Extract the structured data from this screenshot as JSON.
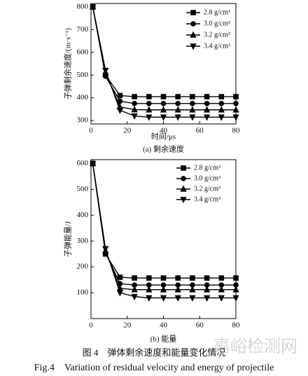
{
  "chart_data": [
    {
      "type": "line",
      "title": "(a) 剩余速度",
      "x_label": "时间/μs",
      "y_label": "子弹剩余速度/(m·s⁻¹)",
      "x": [
        1,
        8,
        16,
        24,
        32,
        40,
        48,
        56,
        64,
        72,
        80
      ],
      "series": [
        {
          "name": "2.8 g/cm³",
          "color": "#000000",
          "marker": "square",
          "values": [
            800,
            500,
            410,
            405,
            405,
            405,
            405,
            405,
            405,
            405,
            405
          ]
        },
        {
          "name": "3.0 g/cm³",
          "color": "#000000",
          "marker": "circle",
          "values": [
            800,
            495,
            385,
            375,
            375,
            375,
            375,
            375,
            375,
            375,
            375
          ]
        },
        {
          "name": "3.2 g/cm³",
          "color": "#000000",
          "marker": "triangle-up",
          "values": [
            800,
            510,
            360,
            348,
            347,
            347,
            347,
            347,
            347,
            347,
            347
          ]
        },
        {
          "name": "3.4 g/cm³",
          "color": "#000000",
          "marker": "triangle-down",
          "values": [
            800,
            520,
            345,
            320,
            315,
            315,
            315,
            315,
            315,
            315,
            315
          ]
        }
      ],
      "xlim": [
        0,
        80
      ],
      "xticks": [
        0,
        20,
        40,
        60,
        80
      ],
      "ylim": [
        285,
        815
      ],
      "yticks": [
        300,
        400,
        500,
        600,
        700,
        800
      ],
      "legend": "upper right"
    },
    {
      "type": "line",
      "title": "(b) 能量",
      "y_label": "子弹能量/J",
      "x": [
        1,
        8,
        16,
        24,
        32,
        40,
        48,
        56,
        64,
        72,
        80
      ],
      "series": [
        {
          "name": "2.8 g/cm³",
          "color": "#000000",
          "marker": "square",
          "values": [
            600,
            250,
            160,
            157,
            157,
            157,
            157,
            157,
            157,
            157,
            157
          ]
        },
        {
          "name": "3.0 g/cm³",
          "color": "#000000",
          "marker": "circle",
          "values": [
            600,
            255,
            135,
            130,
            130,
            130,
            130,
            130,
            130,
            130,
            130
          ]
        },
        {
          "name": "3.2 g/cm³",
          "color": "#000000",
          "marker": "triangle-up",
          "values": [
            600,
            262,
            117,
            112,
            112,
            112,
            112,
            112,
            112,
            112,
            112
          ]
        },
        {
          "name": "3.4 g/cm³",
          "color": "#000000",
          "marker": "triangle-down",
          "values": [
            600,
            270,
            100,
            85,
            80,
            80,
            80,
            80,
            80,
            80,
            80
          ]
        }
      ],
      "xlim": [
        0,
        80
      ],
      "xticks": [
        0,
        20,
        40,
        60,
        80
      ],
      "ylim": [
        0,
        615
      ],
      "yticks": [
        100,
        200,
        300,
        400,
        500,
        600
      ],
      "legend": "upper right"
    }
  ],
  "caption_cn": "图 4　弹体剩余速度和能量变化情况",
  "caption_en": "Fig.4　Variation of residual velocity and energy of projectile",
  "watermark": "嘉峪检测网"
}
